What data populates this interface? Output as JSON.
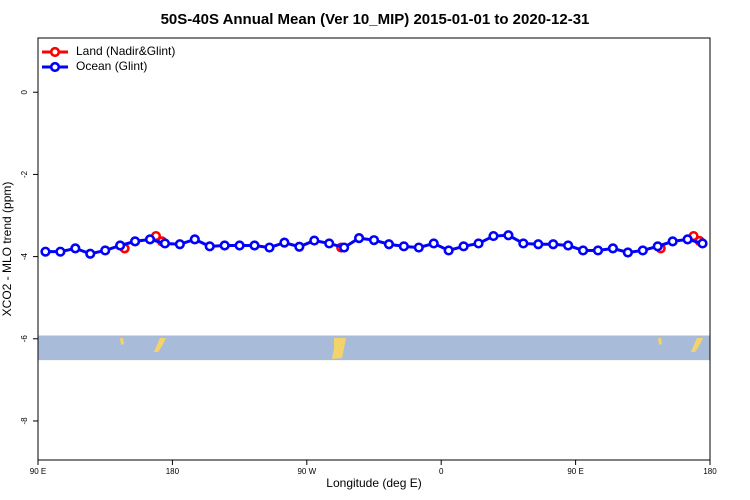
{
  "chart_data": {
    "type": "line",
    "title": "50S-40S Annual Mean (Ver 10_MIP)   2015-01-01 to 2020-12-31",
    "x_label": "Longitude (deg E)",
    "y_label": "XCO2 - MLO trend (ppm)",
    "xlim": [
      90,
      540
    ],
    "ylim": [
      -8.95,
      1.32
    ],
    "xticks": [
      {
        "value": 90,
        "label": "90 E"
      },
      180,
      {
        "value": 270,
        "label": "90 W"
      },
      {
        "value": 360,
        "label": "0"
      },
      {
        "value": 450,
        "label": "90 E"
      },
      {
        "value": 540,
        "label": "180"
      }
    ],
    "yticks": [
      0,
      -2,
      -4,
      -6,
      -8
    ],
    "legend": "top-left",
    "map_band": {
      "range": [
        -5.92,
        -6.52
      ],
      "color": "#a8bcd9"
    },
    "series": [
      {
        "name": "Land (Nadir&Glint)",
        "color": "#ff0000",
        "x": [
          148,
          169,
          173,
          293,
          507,
          529,
          533
        ],
        "values": [
          -3.8,
          -3.5,
          -3.63,
          -3.78,
          -3.8,
          -3.5,
          -3.62
        ]
      },
      {
        "name": "Ocean (Glint)",
        "color": "#0000ff",
        "x": [
          95,
          105,
          115,
          125,
          135,
          145,
          155,
          165,
          175,
          185,
          195,
          205,
          215,
          225,
          235,
          245,
          255,
          265,
          275,
          285,
          295,
          305,
          315,
          325,
          335,
          345,
          355,
          365,
          375,
          385,
          395,
          405,
          415,
          425,
          435,
          445,
          455,
          465,
          475,
          485,
          495,
          505,
          515,
          525,
          535
        ],
        "values": [
          -3.88,
          -3.88,
          -3.8,
          -3.93,
          -3.85,
          -3.73,
          -3.63,
          -3.58,
          -3.68,
          -3.7,
          -3.58,
          -3.75,
          -3.73,
          -3.73,
          -3.73,
          -3.78,
          -3.66,
          -3.76,
          -3.61,
          -3.68,
          -3.78,
          -3.55,
          -3.6,
          -3.7,
          -3.75,
          -3.78,
          -3.68,
          -3.85,
          -3.75,
          -3.68,
          -3.5,
          -3.48,
          -3.68,
          -3.7,
          -3.7,
          -3.73,
          -3.85,
          -3.85,
          -3.8,
          -3.9,
          -3.85,
          -3.75,
          -3.63,
          -3.58,
          -3.68
        ]
      }
    ]
  }
}
